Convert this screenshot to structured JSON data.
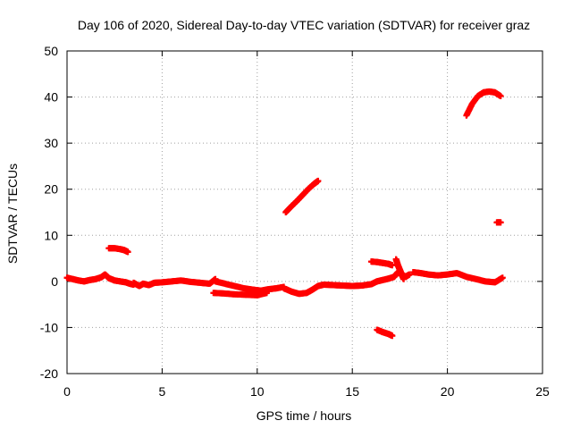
{
  "chart_data": {
    "type": "scatter",
    "title": "Day 106 of 2020, Sidereal Day-to-day VTEC variation (SDTVAR) for receiver graz",
    "xlabel": "GPS time / hours",
    "ylabel": "SDTVAR / TECUs",
    "xlim": [
      0,
      25
    ],
    "ylim": [
      -20,
      50
    ],
    "xticks": [
      0,
      5,
      10,
      15,
      20,
      25
    ],
    "yticks": [
      -20,
      -10,
      0,
      10,
      20,
      30,
      40,
      50
    ],
    "xtick_labels": [
      "0",
      "5",
      "10",
      "15",
      "20",
      "25"
    ],
    "ytick_labels": [
      "-20",
      "-10",
      "0",
      "10",
      "20",
      "30",
      "40",
      "50"
    ],
    "grid": true,
    "marker": "+",
    "color": "#ff0000",
    "series": [
      {
        "name": "arc-main-0",
        "x": [
          0.0,
          0.3,
          0.6,
          0.9,
          1.2,
          1.5,
          1.8,
          2.0,
          2.2,
          2.5,
          2.8,
          3.1,
          3.3,
          3.5
        ],
        "y": [
          0.8,
          0.5,
          0.2,
          0.0,
          0.3,
          0.5,
          0.9,
          1.5,
          0.7,
          0.2,
          0.0,
          -0.2,
          -0.5,
          -0.7
        ]
      },
      {
        "name": "arc-main-1",
        "x": [
          3.5,
          3.8,
          4.0,
          4.3,
          4.6,
          5.0,
          5.5,
          6.0,
          6.5,
          7.0,
          7.5,
          7.8
        ],
        "y": [
          -0.3,
          -1.0,
          -0.5,
          -0.8,
          -0.3,
          -0.2,
          0.0,
          0.2,
          -0.1,
          -0.3,
          -0.5,
          0.5
        ]
      },
      {
        "name": "arc-main-2",
        "x": [
          7.8,
          8.3,
          8.8,
          9.3,
          9.8,
          10.2,
          10.6,
          11.0,
          11.4
        ],
        "y": [
          0.0,
          -0.5,
          -1.0,
          -1.5,
          -1.8,
          -2.0,
          -1.7,
          -1.5,
          -1.2
        ]
      },
      {
        "name": "arc-main-3",
        "x": [
          7.7,
          8.2,
          8.8,
          9.4,
          10.0,
          10.5
        ],
        "y": [
          -2.5,
          -2.6,
          -2.8,
          -2.9,
          -3.0,
          -2.5
        ]
      },
      {
        "name": "arc-main-4",
        "x": [
          11.4,
          11.8,
          12.2,
          12.6,
          12.9,
          13.2,
          13.5,
          14.0,
          14.5,
          15.0,
          15.5,
          16.0,
          16.3
        ],
        "y": [
          -1.5,
          -2.2,
          -2.7,
          -2.5,
          -1.8,
          -1.0,
          -0.7,
          -0.8,
          -0.9,
          -1.0,
          -0.9,
          -0.6,
          0.0
        ]
      },
      {
        "name": "arc-main-5",
        "x": [
          16.3,
          16.6,
          16.9,
          17.2,
          17.4,
          17.6,
          17.8,
          18.0
        ],
        "y": [
          0.0,
          0.3,
          0.6,
          1.0,
          2.0,
          1.5,
          1.0,
          1.5
        ]
      },
      {
        "name": "arc-main-6",
        "x": [
          18.2,
          18.6,
          19.0,
          19.5,
          20.0,
          20.5,
          21.0,
          21.5,
          22.0,
          22.5,
          22.9
        ],
        "y": [
          2.0,
          1.8,
          1.5,
          1.3,
          1.5,
          1.8,
          1.0,
          0.5,
          0.0,
          -0.2,
          0.8
        ]
      },
      {
        "name": "arc-2h",
        "x": [
          2.2,
          2.5,
          2.8,
          3.0,
          3.2
        ],
        "y": [
          7.2,
          7.2,
          7.0,
          6.8,
          6.4
        ]
      },
      {
        "name": "arc-11h",
        "x": [
          11.5,
          11.8,
          12.1,
          12.4,
          12.7,
          13.0,
          13.2
        ],
        "y": [
          15.0,
          16.3,
          17.5,
          18.8,
          20.1,
          21.2,
          21.8
        ]
      },
      {
        "name": "arc-16h-high",
        "x": [
          16.0,
          16.3,
          16.6,
          16.9,
          17.1
        ],
        "y": [
          4.3,
          4.2,
          4.0,
          3.8,
          3.5
        ]
      },
      {
        "name": "arc-16h-low",
        "x": [
          16.3,
          16.6,
          16.9,
          17.1
        ],
        "y": [
          -10.5,
          -11.0,
          -11.4,
          -11.8
        ]
      },
      {
        "name": "arc-17h",
        "x": [
          17.3,
          17.4,
          17.5,
          17.6,
          17.7
        ],
        "y": [
          4.8,
          3.5,
          2.5,
          1.5,
          0.5
        ]
      },
      {
        "name": "arc-21h",
        "x": [
          21.0,
          21.3,
          21.6,
          21.9,
          22.2,
          22.5,
          22.8
        ],
        "y": [
          36.0,
          38.5,
          40.2,
          41.0,
          41.2,
          41.0,
          40.2
        ]
      },
      {
        "name": "arc-22h",
        "x": [
          22.6,
          22.8
        ],
        "y": [
          12.8,
          12.8
        ]
      }
    ]
  }
}
